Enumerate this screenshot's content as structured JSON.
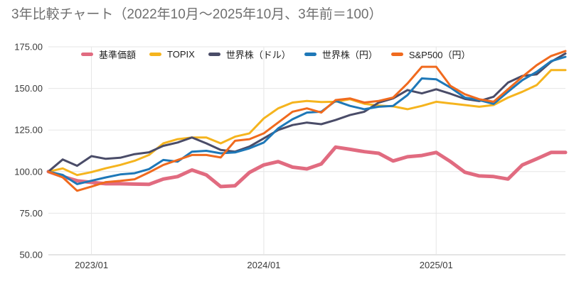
{
  "chart_data": {
    "type": "line",
    "title": "3年比較チャート（2022年10月～2025年10月、3年前＝100）",
    "grid": true,
    "legend_position": "top",
    "ylim": [
      50,
      175
    ],
    "y_ticks": [
      175,
      150,
      125,
      100,
      75,
      50
    ],
    "y_tick_labels": [
      "175.00",
      "150.00",
      "125.00",
      "100.00",
      "75.00",
      "50.00"
    ],
    "x_tick_indices": [
      3,
      15,
      27
    ],
    "x_tick_labels": [
      "2023/01",
      "2024/01",
      "2025/01"
    ],
    "x": [
      "2022/10",
      "2022/11",
      "2022/12",
      "2023/01",
      "2023/02",
      "2023/03",
      "2023/04",
      "2023/05",
      "2023/06",
      "2023/07",
      "2023/08",
      "2023/09",
      "2023/10",
      "2023/11",
      "2023/12",
      "2024/01",
      "2024/02",
      "2024/03",
      "2024/04",
      "2024/05",
      "2024/06",
      "2024/07",
      "2024/08",
      "2024/09",
      "2024/10",
      "2024/11",
      "2024/12",
      "2025/01",
      "2025/02",
      "2025/03",
      "2025/04",
      "2025/05",
      "2025/06",
      "2025/07",
      "2025/08",
      "2025/09",
      "2025/10"
    ],
    "series": [
      {
        "name": "基準価額",
        "color": "#e16b80",
        "width": 5,
        "values": [
          100,
          97,
          94.5,
          93.5,
          92.7,
          92.7,
          92.5,
          92.3,
          95.5,
          97,
          101,
          98,
          91,
          91.5,
          99.5,
          104,
          106,
          102.7,
          101.6,
          104.6,
          114.7,
          113.4,
          112,
          111,
          106.4,
          108.9,
          109.7,
          111.5,
          106,
          99.6,
          97.4,
          97,
          95.5,
          104,
          107.7,
          111.5,
          111.5
        ]
      },
      {
        "name": "TOPIX",
        "color": "#f5b41e",
        "width": 3,
        "values": [
          100,
          101.9,
          97.9,
          99.7,
          102,
          104,
          106.5,
          110,
          117,
          119.5,
          120.5,
          120.5,
          117,
          121,
          123,
          132,
          138,
          141.5,
          142.5,
          141.8,
          142,
          143.5,
          140.8,
          139.7,
          139.2,
          137.5,
          139.5,
          142,
          141,
          140,
          139,
          140,
          144.5,
          148,
          152,
          161,
          161
        ]
      },
      {
        "name": "世界株（ドル）",
        "color": "#4a4c68",
        "width": 3,
        "values": [
          100,
          107.3,
          103.5,
          109.3,
          107.7,
          108.3,
          110.5,
          111.6,
          115.5,
          117.5,
          120.5,
          117,
          113,
          112,
          115,
          120,
          125,
          128,
          129.5,
          128.5,
          131,
          134,
          136,
          141.5,
          144,
          149,
          147,
          149.5,
          146.8,
          143.7,
          142.4,
          145,
          153.5,
          157.5,
          158.5,
          166,
          171
        ]
      },
      {
        "name": "世界株（円）",
        "color": "#1e78b8",
        "width": 3,
        "values": [
          100,
          98,
          92.5,
          94.5,
          96.5,
          98.3,
          99,
          101.5,
          107,
          106,
          112,
          112.5,
          111,
          111.5,
          114,
          117.5,
          126,
          131.5,
          135.5,
          136,
          142.5,
          139.5,
          137.5,
          139,
          139.5,
          146,
          156,
          155.5,
          150.5,
          144.5,
          143,
          140.7,
          148,
          155,
          160,
          166.4,
          169
        ]
      },
      {
        "name": "S&P500（円）",
        "color": "#f06a1e",
        "width": 3,
        "values": [
          100,
          96.5,
          88.5,
          91,
          93.7,
          94.4,
          95.4,
          99.5,
          104,
          107,
          110,
          110,
          108.5,
          118.5,
          119.5,
          123,
          129.5,
          136,
          138,
          135.5,
          143,
          144,
          141.5,
          142.5,
          144.5,
          153,
          163,
          163,
          151.5,
          146.5,
          143.5,
          142,
          149.5,
          157,
          164,
          169.5,
          172.5
        ]
      }
    ]
  }
}
